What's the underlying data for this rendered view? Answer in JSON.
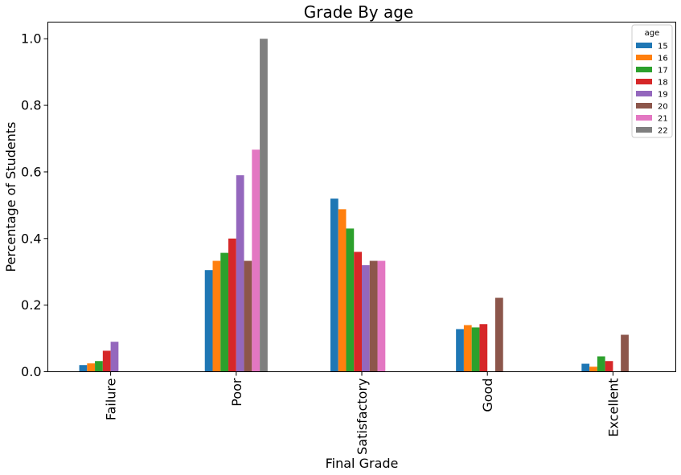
{
  "chart_data": {
    "type": "bar",
    "title": "Grade By age",
    "xlabel": "Final Grade",
    "ylabel": "Percentage of Students",
    "categories": [
      "Failure",
      "Poor",
      "Satisfactory",
      "Good",
      "Excellent"
    ],
    "ylim": [
      0,
      1.05
    ],
    "yticks": [
      "0.0",
      "0.2",
      "0.4",
      "0.6",
      "0.8",
      "1.0"
    ],
    "grid": false,
    "legend": {
      "title": "age",
      "position": "top-right"
    },
    "series": [
      {
        "name": "15",
        "color": "#1f77b4",
        "values": [
          0.02,
          0.305,
          0.52,
          0.128,
          0.024
        ]
      },
      {
        "name": "16",
        "color": "#ff7f0e",
        "values": [
          0.025,
          0.333,
          0.488,
          0.14,
          0.015
        ]
      },
      {
        "name": "17",
        "color": "#2ca02c",
        "values": [
          0.032,
          0.357,
          0.43,
          0.133,
          0.046
        ]
      },
      {
        "name": "18",
        "color": "#d62728",
        "values": [
          0.063,
          0.4,
          0.36,
          0.143,
          0.032
        ]
      },
      {
        "name": "19",
        "color": "#9467bd",
        "values": [
          0.09,
          0.59,
          0.32,
          0,
          0
        ]
      },
      {
        "name": "20",
        "color": "#8c564b",
        "values": [
          0,
          0.333,
          0.333,
          0.222,
          0.111
        ]
      },
      {
        "name": "21",
        "color": "#e377c2",
        "values": [
          0,
          0.667,
          0.333,
          0,
          0
        ]
      },
      {
        "name": "22",
        "color": "#7f7f7f",
        "values": [
          0,
          1.0,
          0,
          0,
          0
        ]
      }
    ]
  }
}
